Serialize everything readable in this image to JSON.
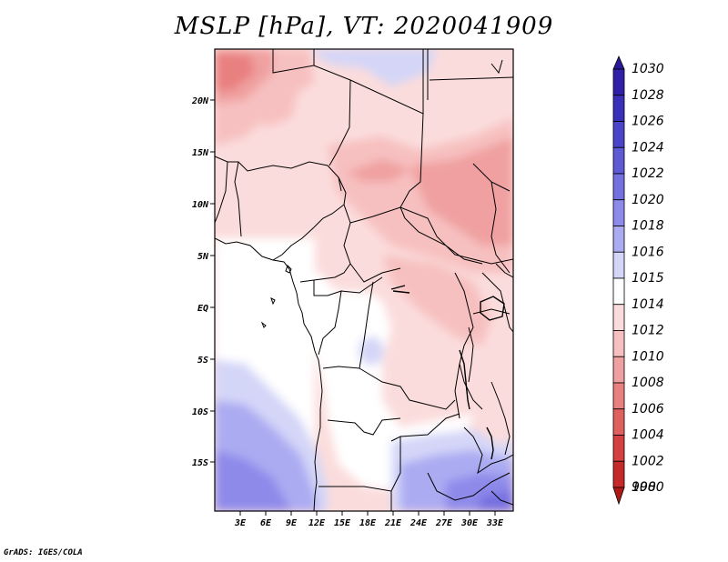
{
  "title": "MSLP [hPa], VT: 2020041909",
  "credit": "GrADS: IGES/COLA",
  "map": {
    "lon_labels": [
      "3E",
      "6E",
      "9E",
      "12E",
      "15E",
      "18E",
      "21E",
      "24E",
      "27E",
      "30E",
      "33E"
    ],
    "lat_labels": [
      "20N",
      "15N",
      "10N",
      "5N",
      "EQ",
      "5S",
      "10S",
      "15S"
    ]
  },
  "colorbar": {
    "levels": [
      {
        "label": "1030",
        "color": "#2a1a99"
      },
      {
        "label": "1028",
        "color": "#3020a8"
      },
      {
        "label": "1026",
        "color": "#3a2fb8"
      },
      {
        "label": "1024",
        "color": "#4a44c8"
      },
      {
        "label": "1022",
        "color": "#5e5ad4"
      },
      {
        "label": "1020",
        "color": "#7470e0"
      },
      {
        "label": "1018",
        "color": "#8e8aea"
      },
      {
        "label": "1016",
        "color": "#ababf2"
      },
      {
        "label": "1015",
        "color": "#d4d6f8"
      },
      {
        "label": "1014",
        "color": "#ffffff"
      },
      {
        "label": "1012",
        "color": "#fbdcdc"
      },
      {
        "label": "1010",
        "color": "#f7c0c0"
      },
      {
        "label": "1008",
        "color": "#f0a0a0"
      },
      {
        "label": "1006",
        "color": "#e98080"
      },
      {
        "label": "1004",
        "color": "#e06060"
      },
      {
        "label": "1002",
        "color": "#d54040"
      },
      {
        "label": "1000",
        "color": "#c52a2a"
      },
      {
        "label": "998",
        "color": "#b01818"
      }
    ]
  }
}
